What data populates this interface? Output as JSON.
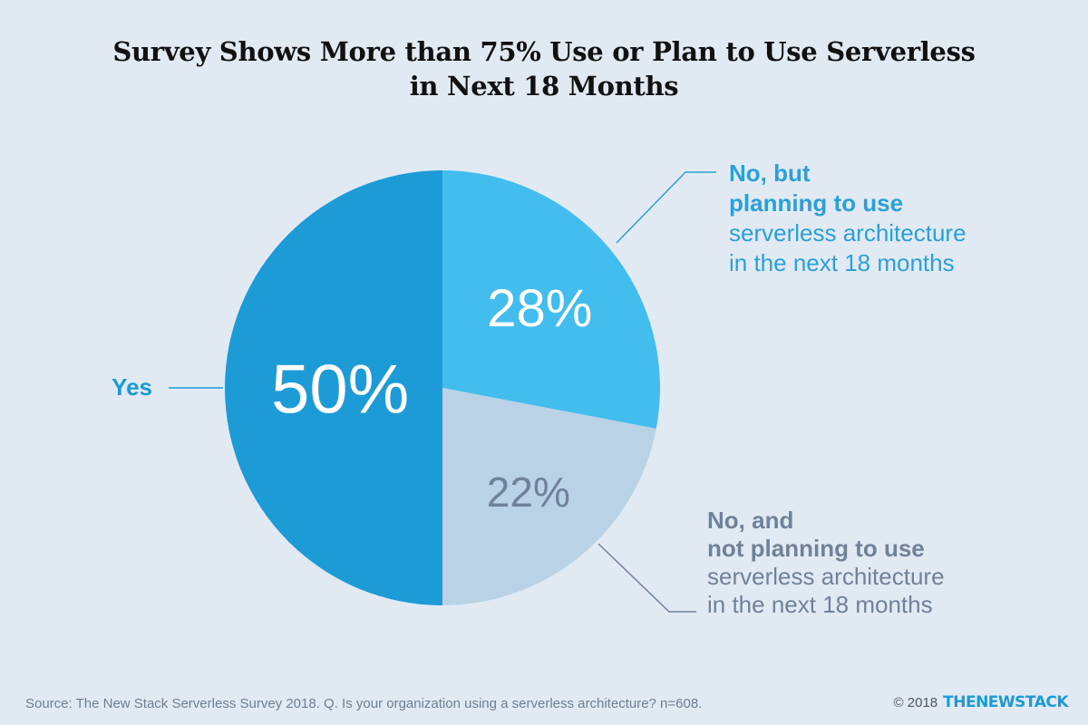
{
  "title_lines": [
    "Survey Shows More than 75% Use or Plan to Use Serverless",
    "in Next 18 Months"
  ],
  "chart_data": {
    "type": "pie",
    "title": "Survey Shows More than 75% Use or Plan to Use Serverless in Next 18 Months",
    "slices": [
      {
        "category": "No, but planning to use serverless architecture in the next 18 months",
        "value": 28,
        "value_label": "28%",
        "label_bold": [
          "No, but",
          "planning to use"
        ],
        "label_regular": [
          "serverless architecture",
          "in the next 18 months"
        ],
        "color": "#42bdee",
        "label_color": "#2b9fd8"
      },
      {
        "category": "No, and not planning to use serverless architecture in the next 18 months",
        "value": 22,
        "value_label": "22%",
        "label_bold": [
          "No, and",
          "not planning to use"
        ],
        "label_regular": [
          "serverless architecture",
          "in the next 18 months"
        ],
        "color": "#bad2e6",
        "label_color": "#6f8299",
        "value_color": "#6f8299"
      },
      {
        "category": "Yes",
        "value": 50,
        "value_label": "50%",
        "label_bold": [
          "Yes"
        ],
        "label_regular": [],
        "color": "#1c9bd7",
        "label_color": "#1c9bd7"
      }
    ]
  },
  "footer": {
    "source": "Source: The New Stack Serverless Survey 2018. Q. Is your organization using a serverless architecture? n=608.",
    "copyright": "© 2018",
    "brand": "THENEWSTACK"
  }
}
